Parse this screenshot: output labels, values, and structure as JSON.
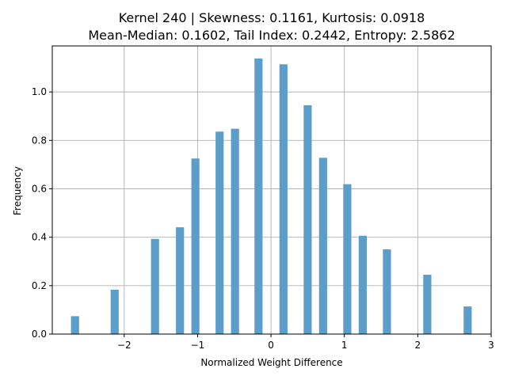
{
  "chart_data": {
    "type": "bar",
    "title_line1": "Kernel 240 | Skewness: 0.1161, Kurtosis: 0.0918",
    "title_line2": "Mean-Median: 0.1602, Tail Index: 0.2442, Entropy: 2.5862",
    "xlabel": "Normalized Weight Difference",
    "ylabel": "Frequency",
    "xlim": [
      -2.98,
      3.0
    ],
    "ylim": [
      0,
      1.19
    ],
    "grid": true,
    "color": "#5a9ec9",
    "bar_width": 0.11,
    "x_ticks": [
      -2,
      -1,
      0,
      1,
      2,
      3
    ],
    "x_tick_labels": [
      "−2",
      "−1",
      "0",
      "1",
      "2",
      "3"
    ],
    "y_ticks": [
      0.0,
      0.2,
      0.4,
      0.6,
      0.8,
      1.0
    ],
    "y_tick_labels": [
      "0.0",
      "0.2",
      "0.4",
      "0.6",
      "0.8",
      "1.0"
    ],
    "bars": [
      {
        "x": -2.67,
        "value": 0.074
      },
      {
        "x": -2.13,
        "value": 0.183
      },
      {
        "x": -1.58,
        "value": 0.393
      },
      {
        "x": -1.24,
        "value": 0.441
      },
      {
        "x": -1.03,
        "value": 0.725
      },
      {
        "x": -0.7,
        "value": 0.836
      },
      {
        "x": -0.49,
        "value": 0.848
      },
      {
        "x": -0.17,
        "value": 1.138
      },
      {
        "x": 0.17,
        "value": 1.114
      },
      {
        "x": 0.5,
        "value": 0.945
      },
      {
        "x": 0.71,
        "value": 0.728
      },
      {
        "x": 1.04,
        "value": 0.619
      },
      {
        "x": 1.25,
        "value": 0.406
      },
      {
        "x": 1.58,
        "value": 0.35
      },
      {
        "x": 2.13,
        "value": 0.245
      },
      {
        "x": 2.68,
        "value": 0.114
      }
    ]
  }
}
